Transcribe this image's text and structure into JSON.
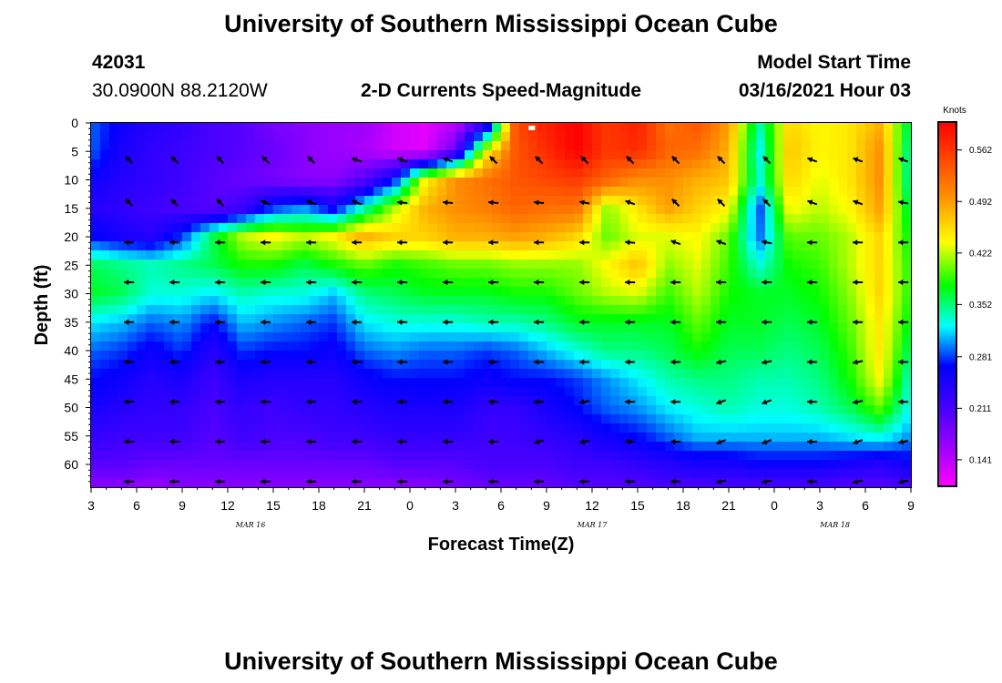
{
  "header": {
    "title_top": "University of Southern Mississippi Ocean Cube",
    "title_bottom": "University of Southern Mississippi Ocean Cube",
    "station_id": "42031",
    "location": "30.0900N 88.2120W",
    "product": "2-D Currents Speed-Magnitude",
    "model_start_label": "Model Start Time",
    "model_start_value": "03/16/2021 Hour 03"
  },
  "chart_data": {
    "type": "heatmap",
    "title": "2-D Currents Speed-Magnitude",
    "xlabel": "Forecast Time(Z)",
    "ylabel": "Depth (ft)",
    "x_ticks": [
      "3",
      "6",
      "9",
      "12",
      "15",
      "18",
      "21",
      "0",
      "3",
      "6",
      "9",
      "12",
      "15",
      "18",
      "21",
      "0",
      "3",
      "6",
      "9"
    ],
    "x_dates": [
      "MAR 16",
      "MAR 17",
      "MAR 18"
    ],
    "y_ticks": [
      "0",
      "5",
      "10",
      "15",
      "20",
      "25",
      "30",
      "35",
      "40",
      "45",
      "50",
      "55",
      "60"
    ],
    "ylim": [
      0,
      64
    ],
    "xlim_hours": [
      0,
      54
    ],
    "colorbar": {
      "units": "Knots",
      "labels": [
        "0.562",
        "0.492",
        "0.422",
        "0.352",
        "0.281",
        "0.211",
        "0.141"
      ],
      "range": [
        0.105,
        0.6
      ]
    },
    "profile_depths_ft": [
      0,
      5,
      10,
      15,
      20,
      25,
      30,
      35,
      40,
      45,
      50,
      55,
      60,
      64
    ],
    "profile_hours": [
      0,
      2,
      4,
      6,
      8,
      10,
      12,
      14,
      16,
      18,
      20,
      22,
      24,
      26,
      28,
      30,
      32,
      34,
      36,
      38,
      40,
      42,
      44,
      46,
      48,
      50,
      52,
      54
    ],
    "speed_knots": [
      [
        0.29,
        0.26,
        0.24,
        0.23,
        0.21,
        0.2,
        0.18,
        0.17,
        0.16,
        0.16,
        0.13,
        0.12,
        0.14,
        0.21,
        0.55,
        0.58,
        0.6,
        0.56,
        0.58,
        0.52,
        0.54,
        0.49,
        0.34,
        0.46,
        0.44,
        0.45,
        0.48,
        0.35
      ],
      [
        0.29,
        0.25,
        0.23,
        0.22,
        0.21,
        0.2,
        0.19,
        0.17,
        0.16,
        0.15,
        0.13,
        0.12,
        0.19,
        0.44,
        0.54,
        0.57,
        0.6,
        0.56,
        0.57,
        0.53,
        0.52,
        0.48,
        0.32,
        0.47,
        0.44,
        0.45,
        0.5,
        0.33
      ],
      [
        0.26,
        0.24,
        0.23,
        0.22,
        0.2,
        0.19,
        0.18,
        0.17,
        0.17,
        0.2,
        0.27,
        0.44,
        0.5,
        0.52,
        0.54,
        0.55,
        0.56,
        0.53,
        0.5,
        0.5,
        0.48,
        0.47,
        0.33,
        0.46,
        0.43,
        0.45,
        0.5,
        0.33
      ],
      [
        0.24,
        0.23,
        0.22,
        0.21,
        0.2,
        0.22,
        0.28,
        0.3,
        0.26,
        0.34,
        0.42,
        0.48,
        0.5,
        0.51,
        0.53,
        0.52,
        0.52,
        0.41,
        0.45,
        0.49,
        0.46,
        0.44,
        0.28,
        0.44,
        0.42,
        0.44,
        0.49,
        0.35
      ],
      [
        0.27,
        0.25,
        0.24,
        0.28,
        0.36,
        0.42,
        0.44,
        0.42,
        0.44,
        0.48,
        0.46,
        0.46,
        0.48,
        0.48,
        0.49,
        0.48,
        0.46,
        0.4,
        0.43,
        0.43,
        0.44,
        0.4,
        0.29,
        0.4,
        0.4,
        0.42,
        0.46,
        0.37
      ],
      [
        0.36,
        0.35,
        0.34,
        0.35,
        0.36,
        0.38,
        0.38,
        0.36,
        0.38,
        0.4,
        0.38,
        0.39,
        0.4,
        0.4,
        0.41,
        0.41,
        0.41,
        0.44,
        0.47,
        0.41,
        0.43,
        0.39,
        0.33,
        0.38,
        0.39,
        0.42,
        0.46,
        0.38
      ],
      [
        0.37,
        0.36,
        0.33,
        0.33,
        0.32,
        0.34,
        0.33,
        0.33,
        0.31,
        0.35,
        0.36,
        0.37,
        0.37,
        0.37,
        0.38,
        0.38,
        0.4,
        0.42,
        0.43,
        0.39,
        0.42,
        0.38,
        0.37,
        0.37,
        0.38,
        0.41,
        0.46,
        0.38
      ],
      [
        0.32,
        0.31,
        0.29,
        0.3,
        0.27,
        0.31,
        0.3,
        0.29,
        0.28,
        0.32,
        0.33,
        0.33,
        0.33,
        0.34,
        0.34,
        0.35,
        0.37,
        0.37,
        0.37,
        0.37,
        0.4,
        0.37,
        0.37,
        0.36,
        0.37,
        0.4,
        0.45,
        0.37
      ],
      [
        0.29,
        0.28,
        0.26,
        0.28,
        0.24,
        0.28,
        0.27,
        0.27,
        0.26,
        0.29,
        0.3,
        0.29,
        0.29,
        0.28,
        0.29,
        0.31,
        0.33,
        0.35,
        0.35,
        0.36,
        0.38,
        0.36,
        0.36,
        0.35,
        0.36,
        0.39,
        0.45,
        0.35
      ],
      [
        0.27,
        0.26,
        0.24,
        0.25,
        0.22,
        0.25,
        0.24,
        0.24,
        0.24,
        0.26,
        0.27,
        0.27,
        0.27,
        0.26,
        0.27,
        0.27,
        0.28,
        0.3,
        0.32,
        0.34,
        0.35,
        0.35,
        0.34,
        0.34,
        0.35,
        0.38,
        0.44,
        0.33
      ],
      [
        0.25,
        0.24,
        0.23,
        0.23,
        0.21,
        0.23,
        0.22,
        0.23,
        0.23,
        0.24,
        0.25,
        0.25,
        0.25,
        0.23,
        0.23,
        0.25,
        0.27,
        0.29,
        0.3,
        0.32,
        0.33,
        0.34,
        0.33,
        0.33,
        0.34,
        0.36,
        0.4,
        0.32
      ],
      [
        0.23,
        0.22,
        0.22,
        0.22,
        0.2,
        0.22,
        0.21,
        0.21,
        0.22,
        0.22,
        0.23,
        0.23,
        0.23,
        0.22,
        0.22,
        0.23,
        0.24,
        0.26,
        0.27,
        0.29,
        0.31,
        0.31,
        0.31,
        0.31,
        0.31,
        0.32,
        0.33,
        0.3
      ],
      [
        0.2,
        0.2,
        0.19,
        0.19,
        0.19,
        0.19,
        0.19,
        0.19,
        0.19,
        0.19,
        0.2,
        0.2,
        0.2,
        0.21,
        0.21,
        0.21,
        0.22,
        0.22,
        0.23,
        0.24,
        0.25,
        0.25,
        0.26,
        0.26,
        0.26,
        0.25,
        0.24,
        0.26
      ],
      [
        0.17,
        0.17,
        0.16,
        0.17,
        0.17,
        0.17,
        0.17,
        0.17,
        0.17,
        0.17,
        0.17,
        0.17,
        0.18,
        0.19,
        0.19,
        0.19,
        0.2,
        0.2,
        0.2,
        0.21,
        0.21,
        0.21,
        0.21,
        0.21,
        0.21,
        0.2,
        0.2,
        0.21
      ]
    ],
    "arrow_hours": [
      2.5,
      5.5,
      8.5,
      11.5,
      14.5,
      17.5,
      20.5,
      23.5,
      26.5,
      29.5,
      32.5,
      35.5,
      38.5,
      41.5,
      44.5,
      47.5,
      50.5,
      53.5
    ],
    "arrow_depths_ft": [
      6.5,
      14,
      21,
      28,
      35,
      42,
      49,
      56,
      63
    ],
    "arrow_direction_deg": [
      [
        135,
        135,
        135,
        135,
        135,
        160,
        160,
        160,
        135,
        135,
        135,
        135,
        135,
        135,
        135,
        160,
        160,
        160
      ],
      [
        135,
        135,
        135,
        160,
        160,
        160,
        175,
        175,
        175,
        175,
        170,
        160,
        135,
        135,
        135,
        160,
        160,
        170
      ],
      [
        180,
        180,
        180,
        180,
        180,
        180,
        180,
        180,
        180,
        180,
        180,
        175,
        160,
        160,
        170,
        180,
        180,
        180
      ],
      [
        180,
        180,
        180,
        180,
        180,
        180,
        180,
        180,
        180,
        180,
        180,
        180,
        180,
        180,
        180,
        180,
        180,
        180
      ],
      [
        180,
        180,
        180,
        180,
        180,
        180,
        180,
        180,
        180,
        180,
        180,
        180,
        180,
        180,
        180,
        180,
        180,
        180
      ],
      [
        180,
        180,
        180,
        180,
        180,
        180,
        180,
        180,
        180,
        180,
        180,
        180,
        180,
        190,
        190,
        180,
        190,
        180
      ],
      [
        180,
        180,
        180,
        180,
        180,
        180,
        180,
        180,
        180,
        180,
        190,
        180,
        180,
        200,
        200,
        180,
        190,
        180
      ],
      [
        180,
        180,
        180,
        180,
        180,
        180,
        180,
        180,
        180,
        190,
        190,
        180,
        180,
        200,
        200,
        180,
        200,
        190
      ],
      [
        180,
        180,
        180,
        180,
        180,
        180,
        180,
        180,
        180,
        180,
        180,
        180,
        180,
        190,
        190,
        180,
        190,
        190
      ]
    ],
    "marker_hour": 29.0,
    "marker_depth_ft": 0.8
  }
}
